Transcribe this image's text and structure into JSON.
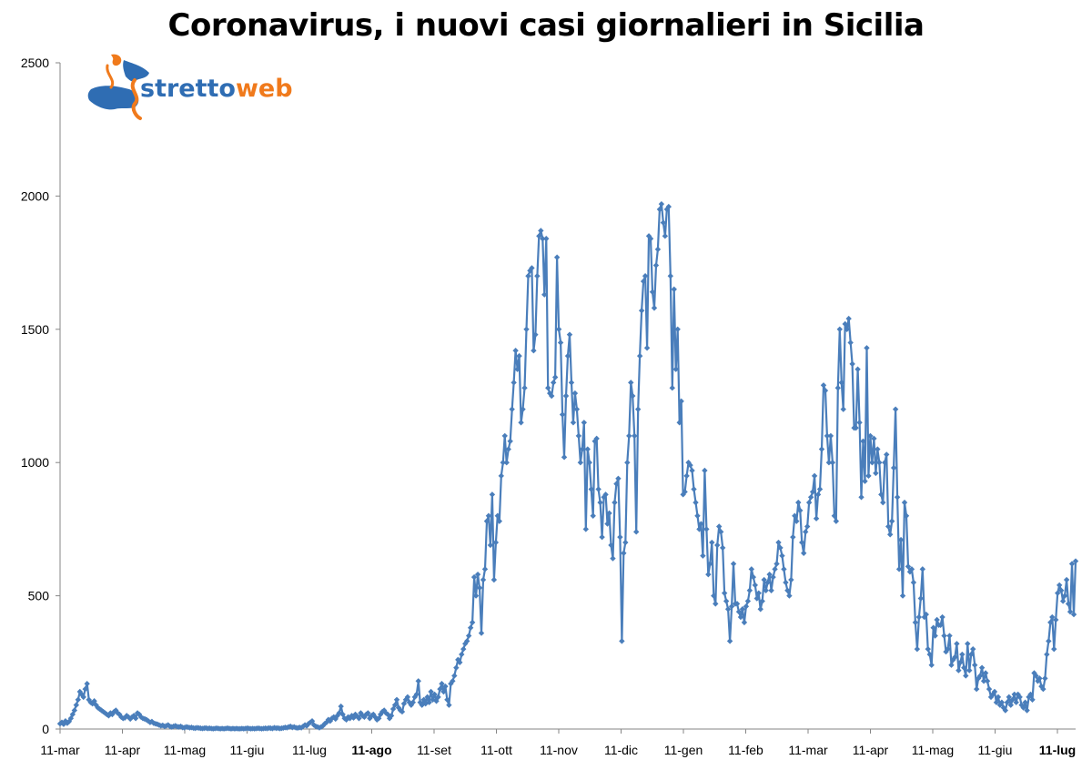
{
  "chart_data": {
    "type": "line",
    "title": "Coronavirus, i nuovi casi giornalieri in Sicilia",
    "xlabel": "",
    "ylabel": "",
    "ylim": [
      0,
      2500
    ],
    "yticks": [
      0,
      500,
      1000,
      1500,
      2000,
      2500
    ],
    "xticks": [
      "11-mar",
      "11-apr",
      "11-mag",
      "11-giu",
      "11-lug",
      "11-ago",
      "11-set",
      "11-ott",
      "11-nov",
      "11-dic",
      "11-gen",
      "11-feb",
      "11-mar",
      "11-apr",
      "11-mag",
      "11-giu",
      "11-lug"
    ],
    "bold_xticks": [
      "11-ago",
      "11-lug"
    ],
    "grid": false,
    "legend": "none",
    "line_color": "#4a7ebb",
    "series": [
      {
        "values": [
          20,
          25,
          18,
          30,
          22,
          28,
          40,
          55,
          70,
          90,
          110,
          140,
          130,
          120,
          150,
          170,
          110,
          100,
          95,
          105,
          90,
          80,
          75,
          70,
          65,
          60,
          55,
          50,
          60,
          55,
          65,
          70,
          60,
          55,
          45,
          40,
          42,
          50,
          45,
          38,
          45,
          50,
          40,
          60,
          55,
          45,
          40,
          38,
          35,
          30,
          25,
          28,
          22,
          20,
          18,
          15,
          12,
          14,
          10,
          12,
          15,
          10,
          8,
          10,
          12,
          9,
          8,
          10,
          6,
          5,
          8,
          7,
          5,
          6,
          4,
          3,
          5,
          4,
          3,
          2,
          3,
          4,
          2,
          3,
          2,
          1,
          2,
          3,
          2,
          1,
          2,
          1,
          2,
          3,
          2,
          1,
          2,
          1,
          2,
          1,
          1,
          2,
          1,
          2,
          3,
          2,
          1,
          2,
          1,
          2,
          3,
          2,
          1,
          2,
          3,
          2,
          4,
          3,
          2,
          5,
          3,
          4,
          2,
          3,
          4,
          6,
          5,
          8,
          10,
          6,
          8,
          5,
          4,
          6,
          5,
          10,
          15,
          12,
          20,
          25,
          30,
          15,
          10,
          8,
          5,
          8,
          12,
          20,
          25,
          35,
          30,
          40,
          45,
          38,
          50,
          60,
          85,
          55,
          40,
          35,
          45,
          40,
          50,
          42,
          55,
          48,
          40,
          60,
          50,
          45,
          55,
          60,
          40,
          50,
          55,
          45,
          35,
          40,
          55,
          65,
          70,
          60,
          55,
          40,
          50,
          75,
          90,
          110,
          80,
          70,
          65,
          95,
          110,
          120,
          100,
          90,
          100,
          120,
          130,
          180,
          100,
          90,
          110,
          95,
          120,
          100,
          140,
          110,
          130,
          105,
          120,
          150,
          170,
          140,
          160,
          110,
          90,
          170,
          180,
          200,
          230,
          260,
          250,
          280,
          300,
          320,
          330,
          350,
          380,
          400,
          570,
          500,
          580,
          530,
          360,
          560,
          600,
          780,
          800,
          690,
          880,
          560,
          700,
          800,
          780,
          950,
          1000,
          1100,
          1000,
          1050,
          1080,
          1200,
          1300,
          1420,
          1350,
          1400,
          1150,
          1200,
          1280,
          1500,
          1700,
          1720,
          1730,
          1420,
          1480,
          1700,
          1850,
          1870,
          1840,
          1630,
          1840,
          1280,
          1260,
          1250,
          1300,
          1320,
          1770,
          1500,
          1450,
          1180,
          1020,
          1250,
          1400,
          1480,
          1300,
          1150,
          1260,
          1200,
          1100,
          1000,
          1050,
          1150,
          750,
          1050,
          1000,
          900,
          800,
          1080,
          1090,
          900,
          850,
          720,
          870,
          880,
          770,
          810,
          690,
          640,
          850,
          920,
          940,
          720,
          330,
          660,
          700,
          1000,
          1100,
          1300,
          1250,
          1100,
          740,
          1200,
          1400,
          1570,
          1680,
          1700,
          1430,
          1850,
          1840,
          1640,
          1580,
          1740,
          1800,
          1950,
          1970,
          1900,
          1850,
          1950,
          1960,
          1700,
          1280,
          1650,
          1350,
          1500,
          1150,
          1230,
          880,
          890,
          950,
          1000,
          990,
          970,
          900,
          850,
          800,
          750,
          770,
          650,
          970,
          750,
          580,
          620,
          700,
          500,
          470,
          690,
          760,
          740,
          680,
          510,
          480,
          450,
          330,
          460,
          620,
          470,
          470,
          440,
          420,
          450,
          400,
          460,
          480,
          520,
          600,
          570,
          540,
          490,
          510,
          450,
          480,
          560,
          520,
          550,
          580,
          520,
          570,
          600,
          620,
          700,
          680,
          650,
          600,
          550,
          520,
          500,
          560,
          720,
          800,
          780,
          850,
          820,
          700,
          660,
          740,
          760,
          850,
          870,
          890,
          950,
          790,
          880,
          900,
          1050,
          1290,
          1270,
          1100,
          1000,
          1100,
          1000,
          800,
          780,
          1280,
          1500,
          1300,
          1200,
          1520,
          1500,
          1540,
          1450,
          1370,
          1130,
          1130,
          1350,
          1150,
          870,
          1080,
          930,
          1430,
          950,
          1100,
          1000,
          1090,
          960,
          1050,
          1000,
          880,
          850,
          1000,
          1030,
          760,
          730,
          780,
          980,
          1200,
          870,
          600,
          710,
          500,
          850,
          800,
          610,
          590,
          600,
          550,
          400,
          300,
          420,
          490,
          600,
          420,
          430,
          300,
          280,
          240,
          380,
          350,
          410,
          390,
          390,
          420,
          350,
          290,
          300,
          350,
          240,
          260,
          270,
          320,
          220,
          250,
          280,
          230,
          200,
          320,
          220,
          280,
          300,
          240,
          150,
          190,
          200,
          230,
          180,
          210,
          180,
          150,
          120,
          130,
          140,
          100,
          120,
          90,
          100,
          80,
          70,
          100,
          120,
          90,
          110,
          130,
          100,
          130,
          120,
          90,
          80,
          100,
          70,
          120,
          130,
          110,
          210,
          200,
          180,
          190,
          160,
          150,
          190,
          280,
          330,
          400,
          420,
          300,
          410,
          510,
          540,
          520,
          480,
          500,
          560,
          470,
          440,
          620,
          430,
          630
        ]
      }
    ]
  },
  "logo": {
    "part1": "stretto",
    "part2": "web"
  }
}
